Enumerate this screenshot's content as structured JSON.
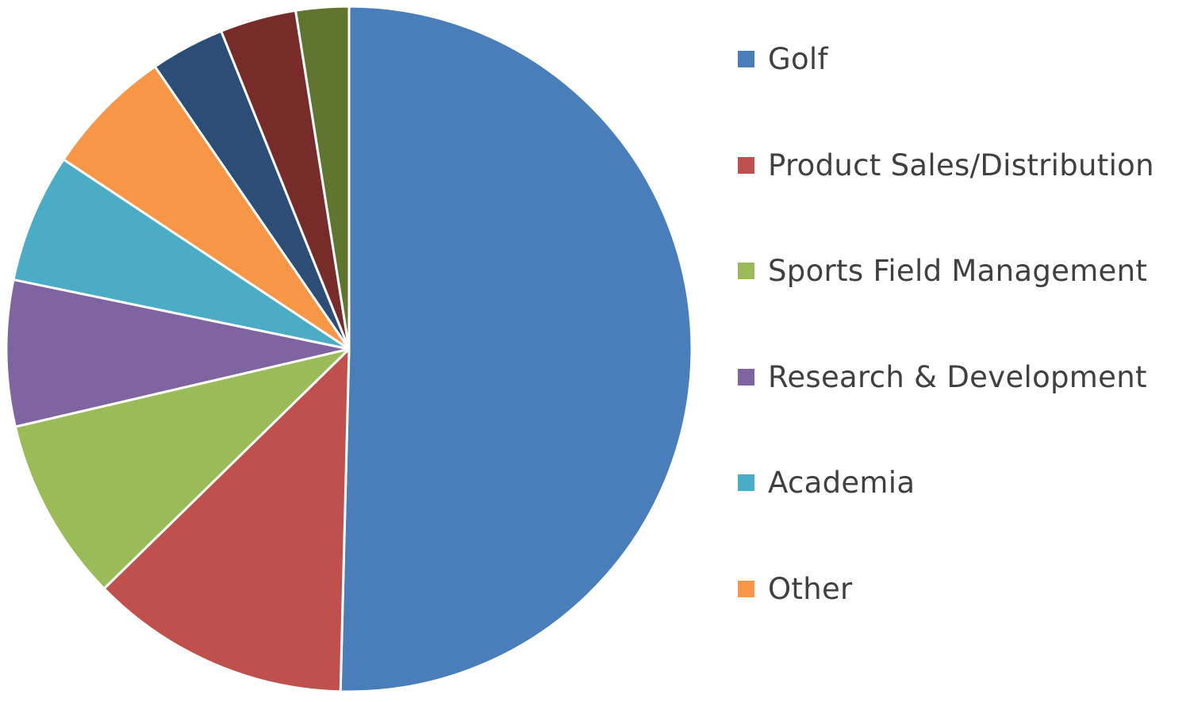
{
  "chart_data": {
    "type": "pie",
    "title": "",
    "start_angle_deg": 0,
    "direction": "clockwise",
    "legend_position": "right",
    "slices": [
      {
        "label": "Golf",
        "value": 50.5,
        "color": "#4a7ebb",
        "in_legend": true
      },
      {
        "label": "Product Sales/Distribution",
        "value": 12.3,
        "color": "#c0504d",
        "in_legend": true
      },
      {
        "label": "Sports Field Management",
        "value": 8.7,
        "color": "#9bbb59",
        "in_legend": true
      },
      {
        "label": "Research & Development",
        "value": 6.9,
        "color": "#8064a2",
        "in_legend": true
      },
      {
        "label": "Academia",
        "value": 6.1,
        "color": "#4bacc6",
        "in_legend": true
      },
      {
        "label": "Other",
        "value": 6.1,
        "color": "#f79646",
        "in_legend": true
      },
      {
        "label": "",
        "value": 3.5,
        "color": "#2c4d75",
        "in_legend": false
      },
      {
        "label": "",
        "value": 3.6,
        "color": "#772c2a",
        "in_legend": false
      },
      {
        "label": "",
        "value": 2.5,
        "color": "#5f7530",
        "in_legend": false
      }
    ]
  }
}
